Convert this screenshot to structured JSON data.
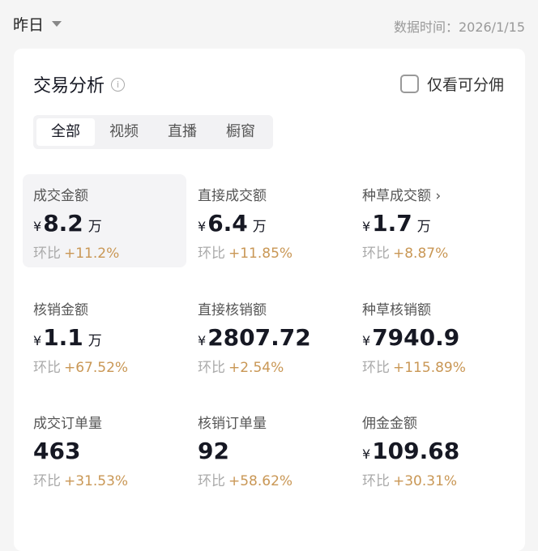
{
  "header": {
    "date_range": "昨日",
    "data_time": "数据时间：2026/1/15"
  },
  "card": {
    "title": "交易分析",
    "checkbox_label": "仅看可分佣",
    "checkbox_checked": false,
    "tabs": [
      {
        "label": "全部",
        "active": true
      },
      {
        "label": "视频"
      },
      {
        "label": "直播"
      },
      {
        "label": "橱窗"
      }
    ]
  },
  "metrics": [
    {
      "label": "成交金额",
      "currency": "¥",
      "value": "8.2",
      "unit": "万",
      "change_label": "环比",
      "change": "+11.2%"
    },
    {
      "label": "直接成交额",
      "currency": "¥",
      "value": "6.4",
      "unit": "万",
      "change_label": "环比",
      "change": "+11.85%"
    },
    {
      "label": "种草成交额 ›",
      "currency": "¥",
      "value": "1.7",
      "unit": "万",
      "change_label": "环比",
      "change": "+8.87%"
    },
    {
      "label": "核销金额",
      "currency": "¥",
      "value": "1.1",
      "unit": "万",
      "change_label": "环比",
      "change": "+67.52%"
    },
    {
      "label": "直接核销额",
      "currency": "¥",
      "value": "2807.72",
      "change_label": "环比",
      "change": "+2.54%"
    },
    {
      "label": "种草核销额",
      "currency": "¥",
      "value": "7940.9",
      "change_label": "环比",
      "change": "+115.89%"
    },
    {
      "label": "成交订单量",
      "value": "463",
      "change_label": "环比",
      "change": "+31.53%"
    },
    {
      "label": "核销订单量",
      "value": "92",
      "change_label": "环比",
      "change": "+58.62%"
    },
    {
      "label": "佣金金额",
      "currency": "¥",
      "value": "109.68",
      "change_label": "环比",
      "change": "+30.31%"
    }
  ],
  "colors": {
    "accent_change": "#c99755",
    "background": "#f5f5f5"
  }
}
